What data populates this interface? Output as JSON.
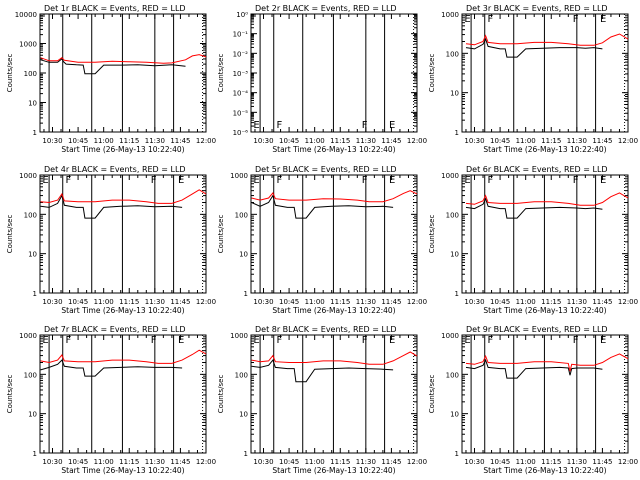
{
  "colors": {
    "events": "#000000",
    "lld": "#ff0000",
    "axis": "#000000"
  },
  "common": {
    "xlabel": "Start Time (26-May-13 10:22:40)",
    "ylabel": "Counts/sec",
    "x_tick_labels": [
      "10:30",
      "10:45",
      "11:00",
      "11:15",
      "11:30",
      "11:45",
      "12:00"
    ],
    "x_tick_minutes": [
      30,
      45,
      60,
      75,
      90,
      105,
      120
    ],
    "x_range_minutes": [
      22.67,
      120
    ],
    "event_lines_minutes": [
      28,
      36,
      53,
      71,
      90,
      101,
      118
    ],
    "event_lines_style": [
      "solid",
      "solid",
      "solid",
      "solid",
      "solid",
      "solid",
      "dotted"
    ],
    "flag_labels": [
      "E",
      "F",
      "F",
      "E"
    ],
    "flag_minutes": [
      23.5,
      37,
      87,
      103
    ]
  },
  "chart_data": [
    {
      "type": "line",
      "title": "Det 1r BLACK = Events, RED = LLD",
      "yscale": "log",
      "ylim": [
        1,
        10000
      ],
      "ytick_labels": [
        "1",
        "10",
        "100",
        "1000",
        "10000"
      ],
      "show_flags": false,
      "series": [
        {
          "name": "Events",
          "color": "#000000",
          "x": [
            23,
            28,
            33,
            35.5,
            36.5,
            38,
            44,
            48,
            49,
            55,
            60,
            70,
            80,
            90,
            100,
            108
          ],
          "y": [
            280,
            230,
            230,
            300,
            240,
            200,
            190,
            185,
            95,
            95,
            185,
            185,
            190,
            175,
            190,
            170
          ]
        },
        {
          "name": "LLD",
          "color": "#ff0000",
          "x": [
            23,
            28,
            33,
            35.5,
            37,
            45,
            55,
            65,
            75,
            85,
            95,
            100,
            108,
            112,
            116,
            120
          ],
          "y": [
            330,
            260,
            260,
            330,
            270,
            230,
            230,
            250,
            240,
            230,
            215,
            220,
            280,
            380,
            420,
            350
          ]
        }
      ]
    },
    {
      "type": "line",
      "title": "Det 2r BLACK = Events, RED = LLD",
      "yscale": "log",
      "ylim": [
        1e-06,
        1
      ],
      "ytick_labels": [
        "10⁰",
        "10⁻¹",
        "10⁻²",
        "10⁻³",
        "10⁻⁴",
        "10⁻⁵",
        "10⁻⁶"
      ],
      "show_flags": true,
      "series": []
    },
    {
      "type": "line",
      "title": "Det 3r BLACK = Events, RED = LLD",
      "yscale": "log",
      "ylim": [
        1,
        1000
      ],
      "ytick_labels": [
        "1",
        "10",
        "100",
        "1000"
      ],
      "show_flags": true,
      "series": [
        {
          "name": "Events",
          "color": "#000000",
          "x": [
            25,
            30,
            35,
            36.5,
            38,
            45,
            48,
            49,
            55,
            60,
            70,
            80,
            90,
            95,
            100,
            105
          ],
          "y": [
            140,
            130,
            170,
            230,
            150,
            130,
            130,
            80,
            80,
            130,
            135,
            140,
            140,
            135,
            140,
            130
          ]
        },
        {
          "name": "LLD",
          "color": "#ff0000",
          "x": [
            25,
            30,
            35,
            36.5,
            38,
            45,
            55,
            65,
            75,
            85,
            92,
            100,
            105,
            110,
            115,
            120
          ],
          "y": [
            175,
            165,
            200,
            280,
            190,
            175,
            175,
            190,
            190,
            175,
            160,
            160,
            185,
            260,
            310,
            230
          ]
        }
      ]
    },
    {
      "type": "line",
      "title": "Det 4r BLACK = Events, RED = LLD",
      "yscale": "log",
      "ylim": [
        1,
        1000
      ],
      "ytick_labels": [
        "1",
        "10",
        "100",
        "1000"
      ],
      "show_flags": true,
      "series": [
        {
          "name": "Events",
          "color": "#000000",
          "x": [
            23,
            28,
            33,
            35.5,
            37,
            44,
            48,
            49,
            55,
            60,
            70,
            80,
            90,
            100,
            106
          ],
          "y": [
            160,
            150,
            190,
            300,
            170,
            150,
            150,
            80,
            80,
            150,
            160,
            165,
            155,
            160,
            150
          ]
        },
        {
          "name": "LLD",
          "color": "#ff0000",
          "x": [
            23,
            28,
            33,
            35.5,
            37,
            45,
            55,
            65,
            75,
            85,
            92,
            100,
            106,
            112,
            116,
            120
          ],
          "y": [
            210,
            200,
            230,
            330,
            220,
            210,
            210,
            230,
            230,
            210,
            190,
            190,
            230,
            330,
            420,
            330
          ]
        }
      ]
    },
    {
      "type": "line",
      "title": "Det 5r BLACK = Events, RED = LLD",
      "yscale": "log",
      "ylim": [
        1,
        1000
      ],
      "ytick_labels": [
        "1",
        "10",
        "100",
        "1000"
      ],
      "show_flags": true,
      "series": [
        {
          "name": "Events",
          "color": "#000000",
          "x": [
            23,
            28,
            33,
            35.5,
            37,
            44,
            48,
            49,
            55,
            60,
            70,
            80,
            90,
            100,
            106
          ],
          "y": [
            200,
            160,
            200,
            300,
            170,
            150,
            150,
            80,
            80,
            150,
            160,
            165,
            155,
            160,
            150
          ]
        },
        {
          "name": "LLD",
          "color": "#ff0000",
          "x": [
            23,
            28,
            33,
            35.5,
            37,
            45,
            55,
            65,
            75,
            85,
            92,
            100,
            106,
            112,
            116,
            120
          ],
          "y": [
            260,
            230,
            260,
            350,
            250,
            230,
            230,
            250,
            245,
            230,
            210,
            210,
            250,
            340,
            400,
            330
          ]
        }
      ]
    },
    {
      "type": "line",
      "title": "Det 6r BLACK = Events, RED = LLD",
      "yscale": "log",
      "ylim": [
        1,
        1000
      ],
      "ytick_labels": [
        "1",
        "10",
        "100",
        "1000"
      ],
      "show_flags": true,
      "series": [
        {
          "name": "Events",
          "color": "#000000",
          "x": [
            25,
            30,
            35,
            36.5,
            38,
            45,
            48,
            49,
            55,
            60,
            70,
            80,
            90,
            95,
            100,
            105
          ],
          "y": [
            150,
            140,
            180,
            250,
            160,
            140,
            140,
            80,
            80,
            140,
            145,
            150,
            145,
            140,
            145,
            135
          ]
        },
        {
          "name": "LLD",
          "color": "#ff0000",
          "x": [
            25,
            30,
            35,
            36.5,
            38,
            45,
            55,
            65,
            75,
            85,
            92,
            100,
            105,
            110,
            115,
            120
          ],
          "y": [
            190,
            180,
            220,
            300,
            200,
            190,
            190,
            210,
            210,
            190,
            170,
            170,
            200,
            280,
            350,
            260
          ]
        }
      ]
    },
    {
      "type": "line",
      "title": "Det 7r BLACK = Events, RED = LLD",
      "yscale": "log",
      "ylim": [
        1,
        1000
      ],
      "ytick_labels": [
        "1",
        "10",
        "100",
        "1000"
      ],
      "show_flags": true,
      "series": [
        {
          "name": "Events",
          "color": "#000000",
          "x": [
            23,
            28,
            33,
            35.5,
            37,
            44,
            48,
            49,
            55,
            60,
            70,
            80,
            90,
            100,
            106
          ],
          "y": [
            130,
            150,
            180,
            230,
            160,
            145,
            145,
            90,
            90,
            145,
            150,
            155,
            150,
            150,
            145
          ]
        },
        {
          "name": "LLD",
          "color": "#ff0000",
          "x": [
            23,
            28,
            33,
            35.5,
            37,
            45,
            55,
            65,
            75,
            85,
            92,
            100,
            106,
            112,
            116,
            120
          ],
          "y": [
            220,
            200,
            230,
            310,
            220,
            210,
            210,
            230,
            230,
            210,
            190,
            190,
            230,
            320,
            410,
            330
          ]
        }
      ]
    },
    {
      "type": "line",
      "title": "Det 8r BLACK = Events, RED = LLD",
      "yscale": "log",
      "ylim": [
        1,
        1000
      ],
      "ytick_labels": [
        "1",
        "10",
        "100",
        "1000"
      ],
      "show_flags": true,
      "series": [
        {
          "name": "Events",
          "color": "#000000",
          "x": [
            23,
            28,
            33,
            35.5,
            37,
            44,
            48,
            49,
            55,
            60,
            70,
            80,
            90,
            100,
            106
          ],
          "y": [
            160,
            150,
            170,
            230,
            150,
            140,
            140,
            65,
            65,
            135,
            140,
            145,
            140,
            135,
            130
          ]
        },
        {
          "name": "LLD",
          "color": "#ff0000",
          "x": [
            23,
            28,
            33,
            35.5,
            37,
            45,
            55,
            65,
            75,
            85,
            92,
            100,
            106,
            112,
            116,
            120
          ],
          "y": [
            230,
            210,
            220,
            300,
            210,
            200,
            200,
            220,
            220,
            200,
            180,
            180,
            220,
            300,
            370,
            290
          ]
        }
      ]
    },
    {
      "type": "line",
      "title": "Det 9r BLACK = Events, RED = LLD",
      "yscale": "log",
      "ylim": [
        1,
        1000
      ],
      "ytick_labels": [
        "1",
        "10",
        "100",
        "1000"
      ],
      "show_flags": true,
      "series": [
        {
          "name": "Events",
          "color": "#000000",
          "x": [
            25,
            30,
            35,
            36.5,
            38,
            45,
            48,
            49,
            55,
            60,
            70,
            80,
            85,
            86,
            87,
            90,
            100,
            105
          ],
          "y": [
            150,
            140,
            170,
            230,
            150,
            140,
            140,
            80,
            80,
            140,
            145,
            150,
            145,
            95,
            140,
            145,
            145,
            135
          ]
        },
        {
          "name": "LLD",
          "color": "#ff0000",
          "x": [
            25,
            30,
            35,
            36.5,
            38,
            45,
            55,
            65,
            75,
            85,
            86,
            87,
            92,
            100,
            105,
            110,
            115,
            120
          ],
          "y": [
            190,
            180,
            210,
            290,
            200,
            190,
            190,
            210,
            210,
            190,
            120,
            180,
            170,
            170,
            200,
            270,
            330,
            250
          ]
        }
      ]
    }
  ]
}
